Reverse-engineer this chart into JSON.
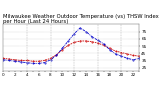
{
  "title": "Milwaukee Weather Outdoor Temperature (vs) THSW Index per Hour (Last 24 Hours)",
  "hours": [
    0,
    1,
    2,
    3,
    4,
    5,
    6,
    7,
    8,
    9,
    10,
    11,
    12,
    13,
    14,
    15,
    16,
    17,
    18,
    19,
    20,
    21,
    22,
    23
  ],
  "temp": [
    38,
    37,
    36,
    35,
    35,
    34,
    34,
    35,
    38,
    43,
    50,
    56,
    60,
    62,
    62,
    61,
    59,
    56,
    52,
    48,
    46,
    44,
    42,
    41
  ],
  "thsw": [
    36,
    35,
    34,
    33,
    32,
    31,
    31,
    32,
    36,
    42,
    52,
    62,
    72,
    80,
    75,
    68,
    63,
    58,
    50,
    44,
    41,
    38,
    36,
    38
  ],
  "temp_color": "#cc0000",
  "thsw_color": "#0000cc",
  "bg_color": "#ffffff",
  "grid_color": "#888888",
  "ylim": [
    20,
    85
  ],
  "yticks": [
    25,
    35,
    45,
    55,
    65,
    75
  ],
  "title_fontsize": 3.8,
  "tick_fontsize": 3.0
}
